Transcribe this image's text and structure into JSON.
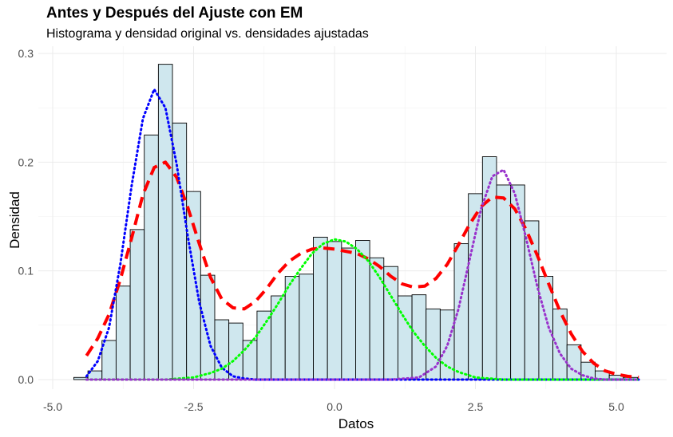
{
  "chart_data": {
    "type": "bar",
    "title": "Antes y Después del Ajuste con EM",
    "subtitle": "Histograma y densidad original vs. densidades ajustadas",
    "xlabel": "Datos",
    "ylabel": "Densidad",
    "xlim": [
      -5.0,
      5.5
    ],
    "ylim": [
      0,
      0.3
    ],
    "x_ticks": [
      -5.0,
      -2.5,
      0.0,
      2.5,
      5.0
    ],
    "x_tick_labels": [
      "-5.0",
      "-2.5",
      "0.0",
      "2.5",
      "5.0"
    ],
    "y_ticks": [
      0.0,
      0.1,
      0.2,
      0.3
    ],
    "y_tick_labels": [
      "0.0",
      "0.1",
      "0.2",
      "0.3"
    ],
    "grid": true,
    "histogram": {
      "bin_width": 0.25,
      "fill": "#cfe7ee",
      "stroke": "#000000",
      "bins": [
        {
          "x0": -4.625,
          "x1": -4.375,
          "density": 0.002
        },
        {
          "x0": -4.375,
          "x1": -4.125,
          "density": 0.008
        },
        {
          "x0": -4.125,
          "x1": -3.875,
          "density": 0.036
        },
        {
          "x0": -3.875,
          "x1": -3.625,
          "density": 0.086
        },
        {
          "x0": -3.625,
          "x1": -3.375,
          "density": 0.138
        },
        {
          "x0": -3.375,
          "x1": -3.125,
          "density": 0.225
        },
        {
          "x0": -3.125,
          "x1": -2.875,
          "density": 0.29
        },
        {
          "x0": -2.875,
          "x1": -2.625,
          "density": 0.236
        },
        {
          "x0": -2.625,
          "x1": -2.375,
          "density": 0.173
        },
        {
          "x0": -2.375,
          "x1": -2.125,
          "density": 0.096
        },
        {
          "x0": -2.125,
          "x1": -1.875,
          "density": 0.055
        },
        {
          "x0": -1.875,
          "x1": -1.625,
          "density": 0.052
        },
        {
          "x0": -1.625,
          "x1": -1.375,
          "density": 0.036
        },
        {
          "x0": -1.375,
          "x1": -1.125,
          "density": 0.063
        },
        {
          "x0": -1.125,
          "x1": -0.875,
          "density": 0.077
        },
        {
          "x0": -0.875,
          "x1": -0.625,
          "density": 0.095
        },
        {
          "x0": -0.625,
          "x1": -0.375,
          "density": 0.097
        },
        {
          "x0": -0.375,
          "x1": -0.125,
          "density": 0.131
        },
        {
          "x0": -0.125,
          "x1": 0.125,
          "density": 0.127
        },
        {
          "x0": 0.125,
          "x1": 0.375,
          "density": 0.121
        },
        {
          "x0": 0.375,
          "x1": 0.625,
          "density": 0.128
        },
        {
          "x0": 0.625,
          "x1": 0.875,
          "density": 0.112
        },
        {
          "x0": 0.875,
          "x1": 1.125,
          "density": 0.104
        },
        {
          "x0": 1.125,
          "x1": 1.375,
          "density": 0.077
        },
        {
          "x0": 1.375,
          "x1": 1.625,
          "density": 0.078
        },
        {
          "x0": 1.625,
          "x1": 1.875,
          "density": 0.065
        },
        {
          "x0": 1.875,
          "x1": 2.125,
          "density": 0.064
        },
        {
          "x0": 2.125,
          "x1": 2.375,
          "density": 0.125
        },
        {
          "x0": 2.375,
          "x1": 2.625,
          "density": 0.171
        },
        {
          "x0": 2.625,
          "x1": 2.875,
          "density": 0.205
        },
        {
          "x0": 2.875,
          "x1": 3.125,
          "density": 0.179
        },
        {
          "x0": 3.125,
          "x1": 3.375,
          "density": 0.179
        },
        {
          "x0": 3.375,
          "x1": 3.625,
          "density": 0.146
        },
        {
          "x0": 3.625,
          "x1": 3.875,
          "density": 0.095
        },
        {
          "x0": 3.875,
          "x1": 4.125,
          "density": 0.065
        },
        {
          "x0": 4.125,
          "x1": 4.375,
          "density": 0.032
        },
        {
          "x0": 4.375,
          "x1": 4.625,
          "density": 0.016
        },
        {
          "x0": 4.625,
          "x1": 4.875,
          "density": 0.008
        },
        {
          "x0": 4.875,
          "x1": 5.125,
          "density": 0.004
        },
        {
          "x0": 5.125,
          "x1": 5.375,
          "density": 0.002
        }
      ]
    },
    "curves": [
      {
        "style": "dashed",
        "color": "#ff0000",
        "x": [
          -4.4,
          -4.2,
          -4.0,
          -3.8,
          -3.6,
          -3.4,
          -3.2,
          -3.0,
          -2.8,
          -2.6,
          -2.4,
          -2.2,
          -2.0,
          -1.8,
          -1.6,
          -1.4,
          -1.2,
          -1.0,
          -0.8,
          -0.6,
          -0.4,
          -0.2,
          0.0,
          0.2,
          0.4,
          0.6,
          0.8,
          1.0,
          1.2,
          1.4,
          1.6,
          1.8,
          2.0,
          2.2,
          2.4,
          2.6,
          2.8,
          3.0,
          3.2,
          3.4,
          3.6,
          3.8,
          4.0,
          4.2,
          4.4,
          4.6,
          4.8,
          5.0,
          5.2,
          5.4
        ],
        "y": [
          0.022,
          0.038,
          0.06,
          0.092,
          0.13,
          0.17,
          0.195,
          0.2,
          0.186,
          0.158,
          0.125,
          0.094,
          0.074,
          0.066,
          0.065,
          0.072,
          0.084,
          0.098,
          0.109,
          0.116,
          0.12,
          0.121,
          0.12,
          0.118,
          0.116,
          0.111,
          0.104,
          0.095,
          0.088,
          0.085,
          0.086,
          0.093,
          0.106,
          0.124,
          0.143,
          0.159,
          0.168,
          0.167,
          0.157,
          0.138,
          0.114,
          0.088,
          0.063,
          0.042,
          0.026,
          0.015,
          0.008,
          0.005,
          0.003,
          0.002
        ]
      },
      {
        "style": "dotted",
        "color": "#0000ff",
        "x": [
          -4.4,
          -4.2,
          -4.0,
          -3.8,
          -3.6,
          -3.4,
          -3.2,
          -3.0,
          -2.8,
          -2.6,
          -2.4,
          -2.2,
          -2.0,
          -1.8,
          -1.6,
          -1.4,
          -1.2,
          -1.0,
          0.0,
          2.0,
          4.0,
          5.4
        ],
        "y": [
          0.003,
          0.017,
          0.048,
          0.106,
          0.178,
          0.24,
          0.267,
          0.25,
          0.198,
          0.131,
          0.071,
          0.031,
          0.011,
          0.003,
          0.001,
          0.0,
          0.0,
          0.0,
          0.0,
          0.0,
          0.0,
          0.0
        ]
      },
      {
        "style": "dotted",
        "color": "#00ff00",
        "x": [
          -4.4,
          -3.0,
          -2.5,
          -2.2,
          -2.0,
          -1.8,
          -1.6,
          -1.4,
          -1.2,
          -1.0,
          -0.8,
          -0.6,
          -0.4,
          -0.2,
          0.0,
          0.2,
          0.4,
          0.6,
          0.8,
          1.0,
          1.2,
          1.4,
          1.6,
          1.8,
          2.0,
          2.2,
          2.5,
          3.0,
          5.4
        ],
        "y": [
          0.0,
          0.0,
          0.002,
          0.006,
          0.01,
          0.017,
          0.027,
          0.039,
          0.054,
          0.07,
          0.087,
          0.102,
          0.116,
          0.125,
          0.129,
          0.127,
          0.12,
          0.109,
          0.094,
          0.077,
          0.06,
          0.044,
          0.031,
          0.02,
          0.012,
          0.007,
          0.002,
          0.0,
          0.0
        ]
      },
      {
        "style": "dotted",
        "color": "#9932cc",
        "x": [
          -4.4,
          1.0,
          1.5,
          1.8,
          2.0,
          2.2,
          2.4,
          2.6,
          2.8,
          3.0,
          3.2,
          3.4,
          3.6,
          3.8,
          4.0,
          4.2,
          4.4,
          4.6,
          4.8,
          5.0,
          5.4
        ],
        "y": [
          0.0,
          0.0,
          0.002,
          0.012,
          0.031,
          0.065,
          0.111,
          0.157,
          0.187,
          0.193,
          0.171,
          0.13,
          0.085,
          0.048,
          0.024,
          0.01,
          0.004,
          0.001,
          0.0,
          0.0,
          0.0
        ]
      }
    ]
  }
}
